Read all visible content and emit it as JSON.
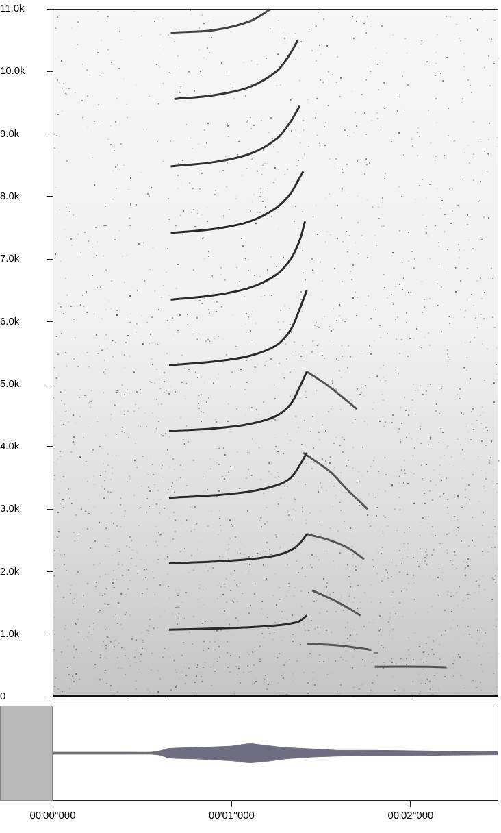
{
  "chart_data": [
    {
      "type": "line",
      "xlim": [
        0,
        2.49
      ],
      "ylim": [
        0,
        11000
      ],
      "yticks": [
        0,
        {
          "value": 1000,
          "label": "1.0k"
        },
        {
          "value": 2000,
          "label": "2.0k"
        },
        {
          "value": 3000,
          "label": "3.0k"
        },
        {
          "value": 4000,
          "label": "4.0k"
        },
        {
          "value": 5000,
          "label": "5.0k"
        },
        {
          "value": 6000,
          "label": "6.0k"
        },
        {
          "value": 7000,
          "label": "7.0k"
        },
        {
          "value": 8000,
          "label": "8.0k"
        },
        {
          "value": 9000,
          "label": "9.0k"
        },
        {
          "value": 10000,
          "label": "10.0k"
        },
        {
          "value": 11000,
          "label": "11.0k"
        }
      ],
      "tick_labels": "y",
      "grid": false,
      "series": [
        {
          "color": "#2a2a2a",
          "x": [
            0.65,
            0.9,
            1.1,
            1.25,
            1.33,
            1.38,
            1.42
          ],
          "values": [
            1070,
            1090,
            1110,
            1140,
            1170,
            1210,
            1300
          ]
        },
        {
          "color": "#2a2a2a",
          "x": [
            0.65,
            0.9,
            1.1,
            1.25,
            1.33,
            1.38,
            1.42
          ],
          "values": [
            2130,
            2160,
            2200,
            2260,
            2340,
            2450,
            2600
          ]
        },
        {
          "color": "#2a2a2a",
          "x": [
            0.65,
            0.9,
            1.1,
            1.25,
            1.33,
            1.38,
            1.42
          ],
          "values": [
            3180,
            3220,
            3280,
            3380,
            3500,
            3700,
            3900
          ]
        },
        {
          "color": "#2a2a2a",
          "x": [
            0.65,
            0.9,
            1.1,
            1.25,
            1.33,
            1.38,
            1.42
          ],
          "values": [
            4250,
            4290,
            4360,
            4490,
            4680,
            4950,
            5200
          ]
        },
        {
          "color": "#2a2a2a",
          "x": [
            0.65,
            0.9,
            1.1,
            1.25,
            1.33,
            1.38,
            1.42
          ],
          "values": [
            5300,
            5360,
            5450,
            5620,
            5870,
            6200,
            6500
          ]
        },
        {
          "color": "#2a2a2a",
          "x": [
            0.66,
            0.9,
            1.1,
            1.25,
            1.33,
            1.38,
            1.41
          ],
          "values": [
            6350,
            6420,
            6540,
            6750,
            7000,
            7300,
            7600
          ]
        },
        {
          "color": "#2a2a2a",
          "x": [
            0.66,
            0.9,
            1.1,
            1.25,
            1.33,
            1.37,
            1.4
          ],
          "values": [
            7420,
            7480,
            7600,
            7820,
            8050,
            8250,
            8400
          ]
        },
        {
          "color": "#333333",
          "x": [
            0.66,
            0.9,
            1.1,
            1.25,
            1.33,
            1.38
          ],
          "values": [
            8480,
            8550,
            8680,
            8920,
            9200,
            9450
          ]
        },
        {
          "color": "#333333",
          "x": [
            0.68,
            0.9,
            1.1,
            1.25,
            1.32,
            1.37
          ],
          "values": [
            9560,
            9620,
            9750,
            10000,
            10250,
            10500
          ]
        },
        {
          "color": "#444444",
          "x": [
            0.66,
            0.9,
            1.1,
            1.22
          ],
          "values": [
            10620,
            10660,
            10800,
            11000
          ]
        },
        {
          "color": "#555555",
          "x": [
            1.42,
            1.55,
            1.65,
            1.74
          ],
          "values": [
            2600,
            2500,
            2380,
            2200
          ]
        },
        {
          "color": "#555555",
          "x": [
            1.4,
            1.55,
            1.65,
            1.76
          ],
          "values": [
            3900,
            3600,
            3300,
            3000
          ]
        },
        {
          "color": "#555555",
          "x": [
            1.42,
            1.55,
            1.7
          ],
          "values": [
            5200,
            4950,
            4600
          ]
        },
        {
          "color": "#555555",
          "x": [
            1.45,
            1.6,
            1.72
          ],
          "values": [
            1700,
            1500,
            1300
          ]
        },
        {
          "color": "#555555",
          "x": [
            1.42,
            1.6,
            1.78
          ],
          "values": [
            850,
            820,
            750
          ]
        },
        {
          "color": "#555555",
          "x": [
            1.8,
            2.1,
            2.2
          ],
          "values": [
            480,
            480,
            470
          ]
        }
      ]
    },
    {
      "type": "area",
      "xlim": [
        0,
        2.49
      ],
      "xticks": [
        {
          "value": 0,
          "label": "00'00''000"
        },
        {
          "value": 1,
          "label": "00'01''000"
        },
        {
          "value": 2,
          "label": "00'02''000"
        }
      ],
      "ylim": [
        -1,
        1
      ],
      "tick_labels": "x",
      "grid": false,
      "series": [
        {
          "color": "#6e6e80",
          "x": [
            0,
            0.2,
            0.4,
            0.55,
            0.6,
            0.65,
            0.8,
            1.0,
            1.1,
            1.2,
            1.3,
            1.45,
            1.6,
            1.8,
            2.0,
            2.2,
            2.49
          ],
          "values": [
            0.02,
            0.02,
            0.02,
            0.02,
            0.05,
            0.1,
            0.12,
            0.15,
            0.2,
            0.16,
            0.12,
            0.09,
            0.06,
            0.06,
            0.05,
            0.04,
            0.03
          ]
        },
        {
          "color": "#6e6e80",
          "x": [
            0,
            0.2,
            0.4,
            0.55,
            0.6,
            0.65,
            0.8,
            1.0,
            1.1,
            1.2,
            1.3,
            1.45,
            1.6,
            1.8,
            2.0,
            2.2,
            2.49
          ],
          "values": [
            -0.02,
            -0.02,
            -0.02,
            -0.02,
            -0.04,
            -0.1,
            -0.12,
            -0.16,
            -0.2,
            -0.17,
            -0.12,
            -0.08,
            -0.06,
            -0.05,
            -0.05,
            -0.04,
            -0.03
          ]
        }
      ]
    }
  ]
}
